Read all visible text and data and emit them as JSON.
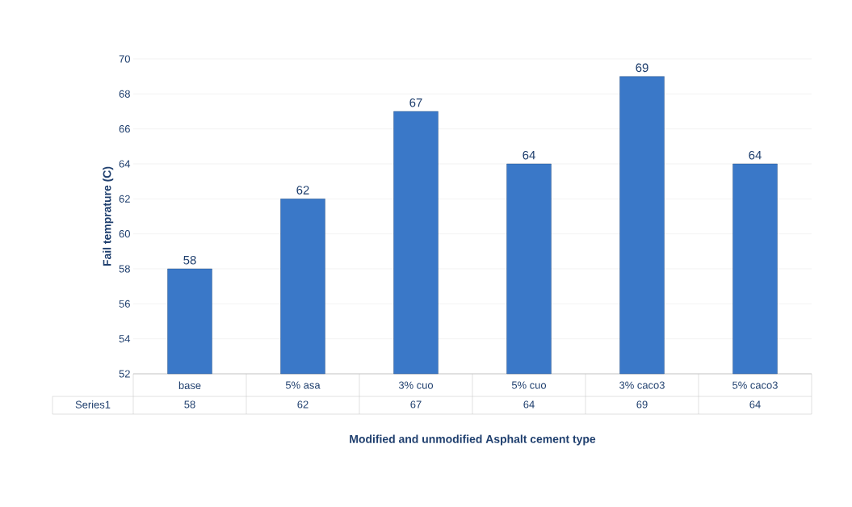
{
  "chart_data": {
    "type": "bar",
    "xlabel": "Modified and unmodified Asphalt cement type",
    "ylabel": "Fail temprature (C)",
    "categories": [
      "base",
      "5% asa",
      "3% cuo",
      "5% cuo",
      "3% caco3",
      "5% caco3"
    ],
    "series": [
      {
        "name": "Series1",
        "color": "#3a78c8",
        "values": [
          58,
          62,
          67,
          64,
          69,
          64
        ],
        "value_labels": [
          "58",
          "62",
          "67",
          "64",
          "69",
          "64"
        ]
      }
    ],
    "ylim": [
      52,
      70
    ],
    "yticks": [
      52,
      54,
      56,
      58,
      60,
      62,
      64,
      66,
      68,
      70
    ],
    "grid": "y",
    "data_labels": true
  }
}
